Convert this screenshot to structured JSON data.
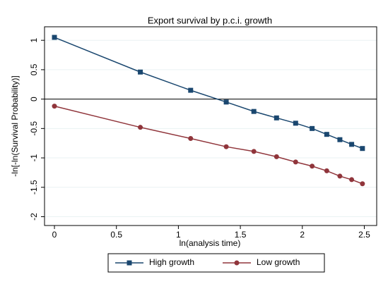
{
  "chart_data": {
    "type": "line",
    "title": "Export survival by p.c.i. growth",
    "x_label": "ln(analysis time)",
    "y_label": "-ln[-ln(Survival Probability)]",
    "x": [
      0,
      0.693,
      1.099,
      1.386,
      1.609,
      1.792,
      1.946,
      2.079,
      2.197,
      2.303,
      2.398,
      2.485
    ],
    "series": [
      {
        "name": "High growth",
        "color": "#1a476f",
        "marker": "square",
        "values": [
          1.05,
          0.46,
          0.15,
          -0.05,
          -0.21,
          -0.32,
          -0.41,
          -0.5,
          -0.6,
          -0.69,
          -0.77,
          -0.84
        ]
      },
      {
        "name": "Low growth",
        "color": "#90353b",
        "marker": "circle",
        "values": [
          -0.12,
          -0.48,
          -0.67,
          -0.81,
          -0.89,
          -0.98,
          -1.07,
          -1.14,
          -1.22,
          -1.31,
          -1.37,
          -1.44
        ]
      }
    ],
    "xlim": [
      -0.08,
      2.6
    ],
    "xticks": [
      0,
      0.5,
      1,
      1.5,
      2,
      2.5
    ],
    "ylim": [
      -2.15,
      1.23
    ],
    "yticks": [
      -2,
      -1.5,
      -1,
      -0.5,
      0,
      0.5,
      1
    ],
    "grid": true,
    "legend": "bottom"
  }
}
